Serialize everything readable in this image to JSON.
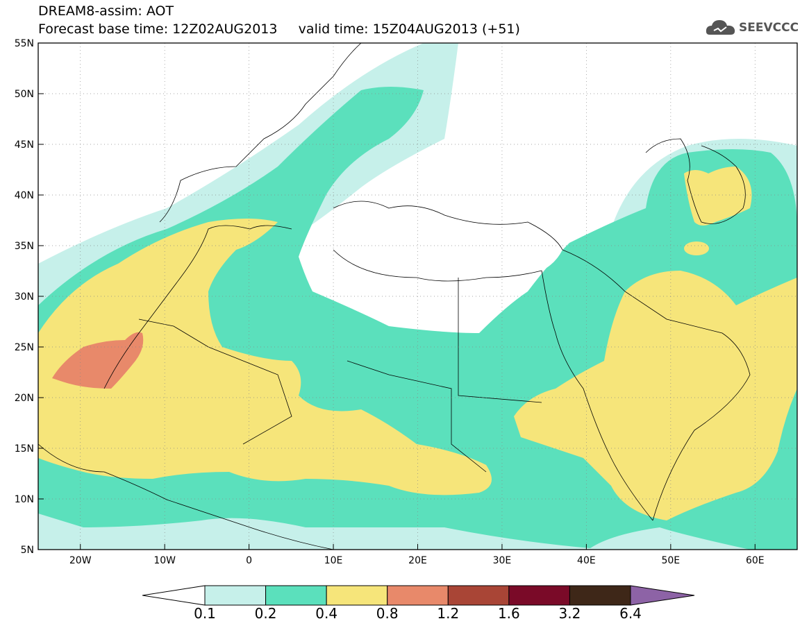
{
  "header": {
    "title_line1": "DREAM8-assim: AOT",
    "title_line2": "Forecast base time: 12Z02AUG2013     valid time: 15Z04AUG2013 (+51)",
    "logo_text": "SEEVCCC"
  },
  "map": {
    "variable": "AOT",
    "lon_range": [
      -25,
      65
    ],
    "lat_range": [
      5,
      55
    ],
    "lon_ticks": [
      "20W",
      "10W",
      "0",
      "10E",
      "20E",
      "30E",
      "40E",
      "50E",
      "60E"
    ],
    "lat_ticks": [
      "55N",
      "50N",
      "45N",
      "40N",
      "35N",
      "30N",
      "25N",
      "20N",
      "15N",
      "10N",
      "5N"
    ],
    "grid": "dotted"
  },
  "legend": {
    "labels": [
      "0.1",
      "0.2",
      "0.4",
      "0.8",
      "1.2",
      "1.6",
      "3.2",
      "6.4"
    ],
    "colors": [
      "#ffffff",
      "#c6f0ea",
      "#5be0bc",
      "#f6e57a",
      "#e8896a",
      "#a94536",
      "#7a0a28",
      "#3e2718",
      "#8d63a6"
    ]
  }
}
